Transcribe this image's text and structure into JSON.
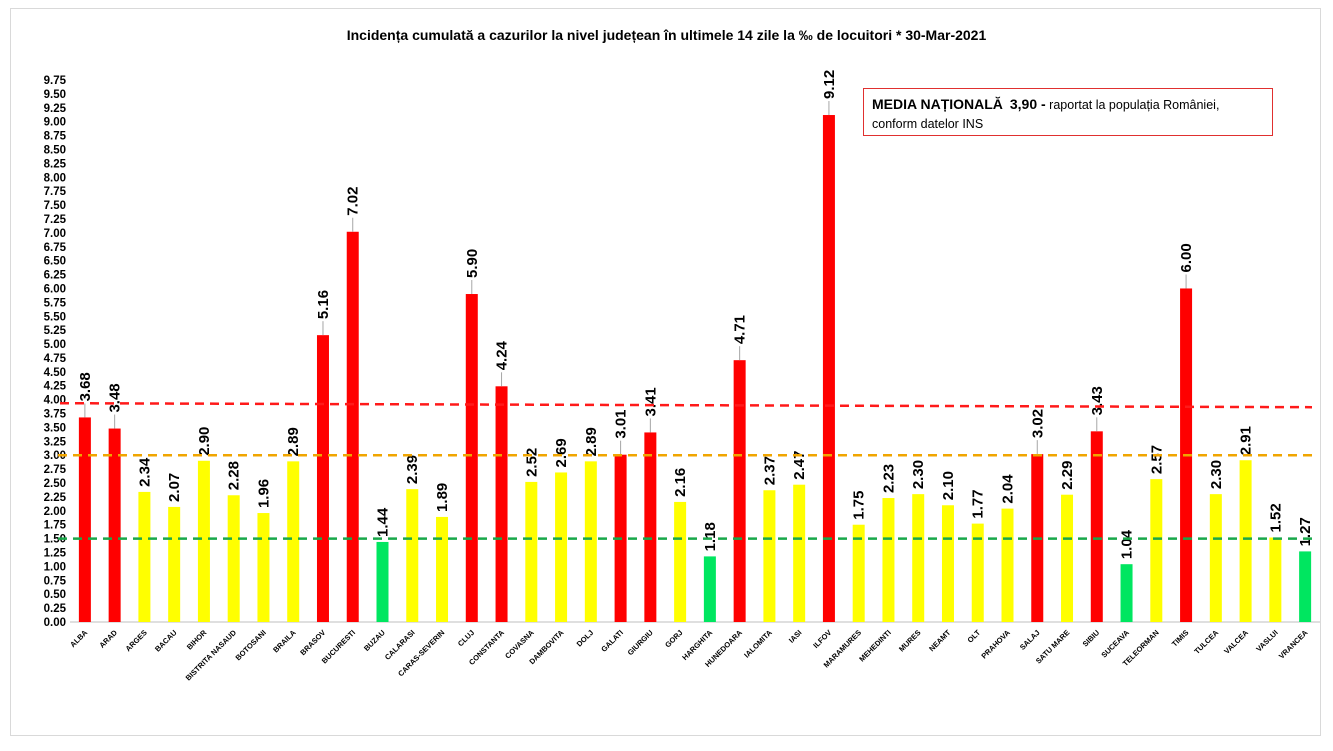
{
  "chart_data": {
    "type": "bar",
    "title": "Incidența cumulată a cazurilor la nivel județean în ultimele 14 zile la ‰ de locuitori * 30-Mar-2021",
    "xlabel": "",
    "ylabel": "",
    "ylim": [
      0,
      9.75
    ],
    "ytick_step": 0.25,
    "grid": false,
    "legend": "none",
    "categories": [
      "ALBA",
      "ARAD",
      "ARGES",
      "BACAU",
      "BIHOR",
      "BISTRITA NASAUD",
      "BOTOSANI",
      "BRAILA",
      "BRASOV",
      "BUCURESTI",
      "BUZAU",
      "CALARASI",
      "CARAS-SEVERIN",
      "CLUJ",
      "CONSTANTA",
      "COVASNA",
      "DAMBOVITA",
      "DOLJ",
      "GALATI",
      "GIURGIU",
      "GORJ",
      "HARGHITA",
      "HUNEDOARA",
      "IALOMITA",
      "IASI",
      "ILFOV",
      "MARAMURES",
      "MEHEDINTI",
      "MURES",
      "NEAMT",
      "OLT",
      "PRAHOVA",
      "SALAJ",
      "SATU MARE",
      "SIBIU",
      "SUCEAVA",
      "TELEORMAN",
      "TIMIS",
      "TULCEA",
      "VALCEA",
      "VASLUI",
      "VRANCEA"
    ],
    "values": [
      3.68,
      3.48,
      2.34,
      2.07,
      2.9,
      2.28,
      1.96,
      2.89,
      5.16,
      7.02,
      1.44,
      2.39,
      1.89,
      5.9,
      4.24,
      2.52,
      2.69,
      2.89,
      3.01,
      3.41,
      2.16,
      1.18,
      4.71,
      2.37,
      2.47,
      9.12,
      1.75,
      2.23,
      2.3,
      2.1,
      1.77,
      2.04,
      3.02,
      2.29,
      3.43,
      1.04,
      2.57,
      6.0,
      2.3,
      2.91,
      1.52,
      1.27
    ],
    "value_labels": [
      "3.68",
      "3.48",
      "2.34",
      "2.07",
      "2.90",
      "2.28",
      "1.96",
      "2.89",
      "5.16",
      "7.02",
      "1.44",
      "2.39",
      "1.89",
      "5.90",
      "4.24",
      "2.52",
      "2.69",
      "2.89",
      "3.01",
      "3.41",
      "2.16",
      "1.18",
      "4.71",
      "2.37",
      "2.47",
      "9.12",
      "1.75",
      "2.23",
      "2.30",
      "2.10",
      "1.77",
      "2.04",
      "3.02",
      "2.29",
      "3.43",
      "1.04",
      "2.57",
      "6.00",
      "2.30",
      "2.91",
      "1.52",
      "1.27"
    ],
    "reference_lines": [
      {
        "name": "media-nationala",
        "value": 3.9,
        "color": "#ff1a1a"
      },
      {
        "name": "prag-galben",
        "value": 3.0,
        "color": "#f0a500"
      },
      {
        "name": "prag-verde",
        "value": 1.5,
        "color": "#19a84a"
      }
    ],
    "colors": {
      "red": "#ff0000",
      "yellow": "#ffff00",
      "green": "#00e660"
    }
  },
  "annotation": {
    "label": "MEDIA NAȚIONALĂ",
    "value": "3,90 -",
    "text": "raportat la populația României,",
    "text2": "conform datelor INS"
  }
}
